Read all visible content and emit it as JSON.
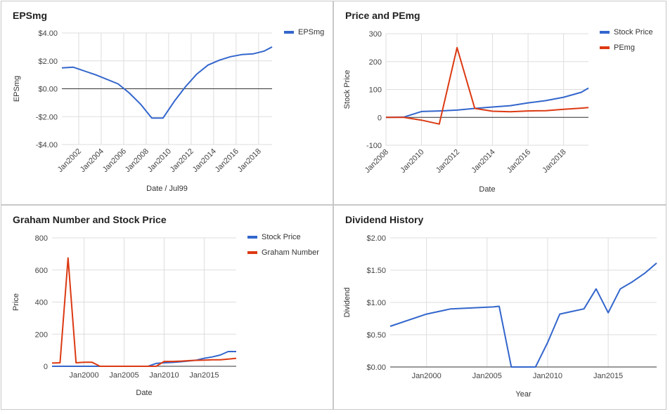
{
  "charts": [
    {
      "title": "EPSmg",
      "chart_data": {
        "type": "line",
        "xlabel": "Date / Jul99",
        "ylabel": "EPSmg",
        "x_ticks": [
          "Jan2002",
          "Jan2004",
          "Jan2006",
          "Jan2008",
          "Jan2010",
          "Jan2012",
          "Jan2014",
          "Jan2016",
          "Jan2018"
        ],
        "y_ticks": [
          "$4.00",
          "$2.00",
          "$0.00",
          "-$2.00",
          "-$4.00"
        ],
        "xlim": [
          2000.5,
          2019.2
        ],
        "ylim": [
          -4,
          4
        ],
        "legend_position": "right",
        "series": [
          {
            "name": "EPSmg",
            "color": "#3366cc",
            "x": [
              2000.5,
              2001.5,
              2003.5,
              2005.5,
              2006.5,
              2007.5,
              2008.5,
              2009.5,
              2010.5,
              2011.5,
              2012.5,
              2013.5,
              2014.5,
              2015.5,
              2016.5,
              2017.5,
              2018.5,
              2019.2
            ],
            "values": [
              1.5,
              1.55,
              1.0,
              0.35,
              -0.3,
              -1.1,
              -2.1,
              -2.1,
              -0.9,
              0.15,
              1.05,
              1.7,
              2.05,
              2.3,
              2.45,
              2.5,
              2.7,
              3.0
            ]
          }
        ]
      }
    },
    {
      "title": "Price and PEmg",
      "chart_data": {
        "type": "line",
        "xlabel": "Date",
        "ylabel": "Stock Price",
        "x_ticks": [
          "Jan2008",
          "Jan2010",
          "Jan2012",
          "Jan2014",
          "Jan2016",
          "Jan2018"
        ],
        "y_ticks": [
          "300",
          "200",
          "100",
          "0",
          "-100"
        ],
        "xlim": [
          2008,
          2019.4
        ],
        "ylim": [
          -100,
          300
        ],
        "legend_position": "right",
        "series": [
          {
            "name": "Stock Price",
            "color": "#3366cc",
            "x": [
              2008,
              2009,
              2010,
              2011,
              2012,
              2013,
              2014,
              2015,
              2016,
              2017,
              2018,
              2019,
              2019.4
            ],
            "values": [
              0,
              1,
              21,
              23,
              26,
              32,
              37,
              42,
              52,
              60,
              72,
              90,
              105
            ]
          },
          {
            "name": "PEmg",
            "color": "#dc3912",
            "x": [
              2008,
              2009,
              2010,
              2011,
              2012,
              2013,
              2014,
              2015,
              2016,
              2017,
              2018,
              2019,
              2019.4
            ],
            "values": [
              0,
              0,
              -10,
              -24,
              250,
              32,
              22,
              20,
              23,
              24,
              29,
              33,
              35
            ]
          }
        ]
      }
    },
    {
      "title": "Graham Number and Stock Price",
      "chart_data": {
        "type": "line",
        "xlabel": "Date",
        "ylabel": "Price",
        "x_ticks": [
          "Jan2000",
          "Jan2005",
          "Jan2010",
          "Jan2015"
        ],
        "y_ticks": [
          "800",
          "600",
          "400",
          "200",
          "0"
        ],
        "xlim": [
          1996,
          2019
        ],
        "ylim": [
          0,
          800
        ],
        "legend_position": "right",
        "series": [
          {
            "name": "Stock Price",
            "color": "#3366cc",
            "x": [
              1996,
              1997,
              1998,
              1999,
              2000,
              2001,
              2002,
              2003,
              2004,
              2005,
              2006,
              2007,
              2008,
              2009,
              2010,
              2011,
              2012,
              2013,
              2014,
              2015,
              2016,
              2017,
              2018,
              2019
            ],
            "values": [
              0,
              0,
              0,
              0,
              0,
              0,
              0,
              0,
              0,
              0,
              0,
              0,
              0,
              18,
              22,
              24,
              28,
              33,
              38,
              50,
              58,
              70,
              92,
              92
            ]
          },
          {
            "name": "Graham Number",
            "color": "#dc3912",
            "x": [
              1996,
              1997,
              1998,
              1999,
              2000,
              2001,
              2002,
              2003,
              2004,
              2005,
              2006,
              2007,
              2008,
              2009,
              2010,
              2011,
              2012,
              2013,
              2014,
              2015,
              2016,
              2017,
              2018,
              2019
            ],
            "values": [
              20,
              22,
              675,
              22,
              25,
              25,
              0,
              0,
              0,
              0,
              0,
              0,
              0,
              0,
              30,
              30,
              32,
              35,
              37,
              38,
              40,
              40,
              45,
              50
            ]
          }
        ]
      }
    },
    {
      "title": "Dividend History",
      "chart_data": {
        "type": "line",
        "xlabel": "Year",
        "ylabel": "Dividend",
        "x_ticks": [
          "Jan2000",
          "Jan2005",
          "Jan2010",
          "Jan2015"
        ],
        "y_ticks": [
          "$2.00",
          "$1.50",
          "$1.00",
          "$0.50",
          "$0.00"
        ],
        "xlim": [
          1997,
          2019
        ],
        "ylim": [
          0,
          2
        ],
        "legend_position": "none",
        "series": [
          {
            "name": "",
            "color": "#3366cc",
            "x": [
              1997,
              2000,
              2002,
              2005.5,
              2006,
              2007,
              2009,
              2010,
              2011,
              2012,
              2013,
              2014,
              2015,
              2016,
              2017,
              2018,
              2019
            ],
            "values": [
              0.63,
              0.82,
              0.9,
              0.93,
              0.94,
              0.0,
              0.0,
              0.38,
              0.82,
              0.86,
              0.9,
              1.21,
              0.84,
              1.21,
              1.32,
              1.45,
              1.61
            ]
          }
        ]
      }
    }
  ]
}
